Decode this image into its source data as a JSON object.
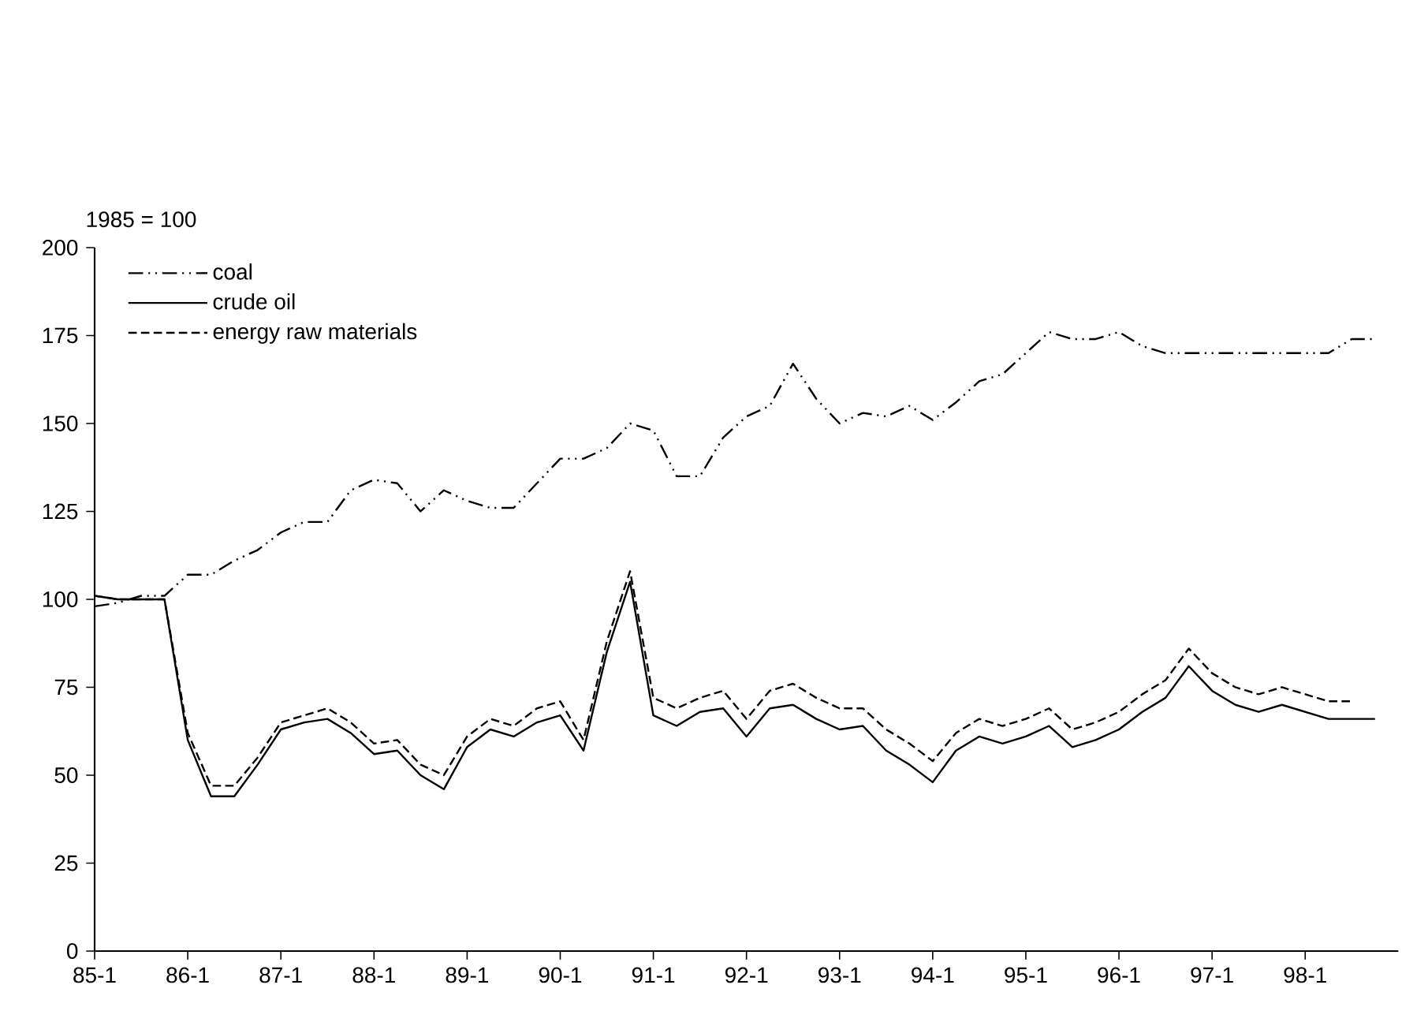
{
  "chart_data": {
    "type": "line",
    "ylabel": "1985 = 100",
    "categories": [
      "85-1",
      null,
      null,
      null,
      "86-1",
      null,
      null,
      null,
      "87-1",
      null,
      null,
      null,
      "88-1",
      null,
      null,
      null,
      "89-1",
      null,
      null,
      null,
      "90-1",
      null,
      null,
      null,
      "91-1",
      null,
      null,
      null,
      "92-1",
      null,
      null,
      null,
      "93-1",
      null,
      null,
      null,
      "94-1",
      null,
      null,
      null,
      "95-1",
      null,
      null,
      null,
      "96-1",
      null,
      null,
      null,
      "97-1",
      null,
      null,
      null,
      "98-1",
      null,
      null,
      null
    ],
    "series": [
      {
        "name": "coal",
        "color": "#000000",
        "line_style": "dashdotdotted",
        "values": [
          98,
          99,
          101,
          101,
          107,
          107,
          111,
          114,
          119,
          122,
          122,
          131,
          134,
          133,
          125,
          131,
          128,
          126,
          126,
          133,
          140,
          140,
          143,
          150,
          148,
          135,
          135,
          146,
          152,
          155,
          167,
          157,
          150,
          153,
          152,
          155,
          151,
          156,
          162,
          164,
          170,
          176,
          174,
          174,
          176,
          172,
          170,
          170,
          170,
          170,
          170,
          170,
          170,
          170,
          174,
          174
        ]
      },
      {
        "name": "crude oil",
        "color": "#000000",
        "line_style": "solid",
        "values": [
          101,
          100,
          100,
          100,
          60,
          44,
          44,
          53,
          63,
          65,
          66,
          62,
          56,
          57,
          50,
          46,
          58,
          63,
          61,
          65,
          67,
          57,
          85,
          105,
          67,
          64,
          68,
          69,
          61,
          69,
          70,
          66,
          63,
          64,
          57,
          53,
          48,
          57,
          61,
          59,
          61,
          64,
          58,
          60,
          63,
          68,
          72,
          81,
          74,
          70,
          68,
          70,
          68,
          66,
          66,
          66
        ]
      },
      {
        "name": "energy raw materials",
        "color": "#000000",
        "line_style": "dashed",
        "values": [
          101,
          100,
          100,
          100,
          62,
          47,
          47,
          55,
          65,
          67,
          69,
          65,
          59,
          60,
          53,
          50,
          61,
          66,
          64,
          69,
          71,
          60,
          88,
          108,
          72,
          69,
          72,
          74,
          66,
          74,
          76,
          72,
          69,
          69,
          63,
          59,
          54,
          62,
          66,
          64,
          66,
          69,
          63,
          65,
          68,
          73,
          77,
          86,
          79,
          75,
          73,
          75,
          73,
          71,
          71,
          null
        ]
      }
    ],
    "ylim": [
      0,
      200
    ],
    "yticks": [
      0,
      25,
      50,
      75,
      100,
      125,
      150,
      175,
      200
    ],
    "grid": false,
    "legend": "top left",
    "marker": "none"
  }
}
